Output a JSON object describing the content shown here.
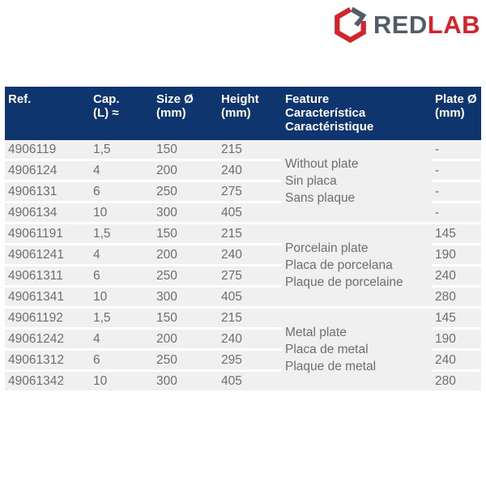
{
  "logo": {
    "text_gray": "RED",
    "text_red": "LAB",
    "red": "#d5232b",
    "slate": "#515c66"
  },
  "colors": {
    "header_bg": "#0f356e",
    "row_bg": "#f1f0f0",
    "row_separator": "#ffffff",
    "cell_text": "#6e6e6e",
    "header_text": "#ffffff"
  },
  "table": {
    "columns": [
      {
        "id": "ref",
        "lines": [
          "Ref."
        ]
      },
      {
        "id": "cap",
        "lines": [
          "Cap.",
          "(L) ≈"
        ]
      },
      {
        "id": "size",
        "lines": [
          "Size Ø",
          "(mm)"
        ]
      },
      {
        "id": "height",
        "lines": [
          "Height",
          "(mm)"
        ]
      },
      {
        "id": "feature",
        "lines": [
          "Feature",
          "Característica",
          "Caractéristique"
        ]
      },
      {
        "id": "plate",
        "lines": [
          "Plate Ø",
          "(mm)"
        ]
      }
    ],
    "groups": [
      {
        "feature": [
          "Without plate",
          "Sin placa",
          "Sans plaque"
        ],
        "rows": [
          {
            "ref": "4906119",
            "cap": "1,5",
            "size": "150",
            "height": "215",
            "plate": "-"
          },
          {
            "ref": "4906124",
            "cap": "4",
            "size": "200",
            "height": "240",
            "plate": "-"
          },
          {
            "ref": "4906131",
            "cap": "6",
            "size": "250",
            "height": "275",
            "plate": "-"
          },
          {
            "ref": "4906134",
            "cap": "10",
            "size": "300",
            "height": "405",
            "plate": "-"
          }
        ]
      },
      {
        "feature": [
          "Porcelain plate",
          "Placa de porcelana",
          "Plaque de porcelaine"
        ],
        "rows": [
          {
            "ref": "49061191",
            "cap": "1,5",
            "size": "150",
            "height": "215",
            "plate": "145"
          },
          {
            "ref": "49061241",
            "cap": "4",
            "size": "200",
            "height": "240",
            "plate": "190"
          },
          {
            "ref": "49061311",
            "cap": "6",
            "size": "250",
            "height": "275",
            "plate": "240"
          },
          {
            "ref": "49061341",
            "cap": "10",
            "size": "300",
            "height": "405",
            "plate": "280"
          }
        ]
      },
      {
        "feature": [
          "Metal plate",
          "Placa de metal",
          "Plaque de metal"
        ],
        "rows": [
          {
            "ref": "49061192",
            "cap": "1,5",
            "size": "150",
            "height": "215",
            "plate": "145"
          },
          {
            "ref": "49061242",
            "cap": "4",
            "size": "200",
            "height": "240",
            "plate": "190"
          },
          {
            "ref": "49061312",
            "cap": "6",
            "size": "250",
            "height": "295",
            "plate": "240"
          },
          {
            "ref": "49061342",
            "cap": "10",
            "size": "300",
            "height": "405",
            "plate": "280"
          }
        ]
      }
    ]
  }
}
